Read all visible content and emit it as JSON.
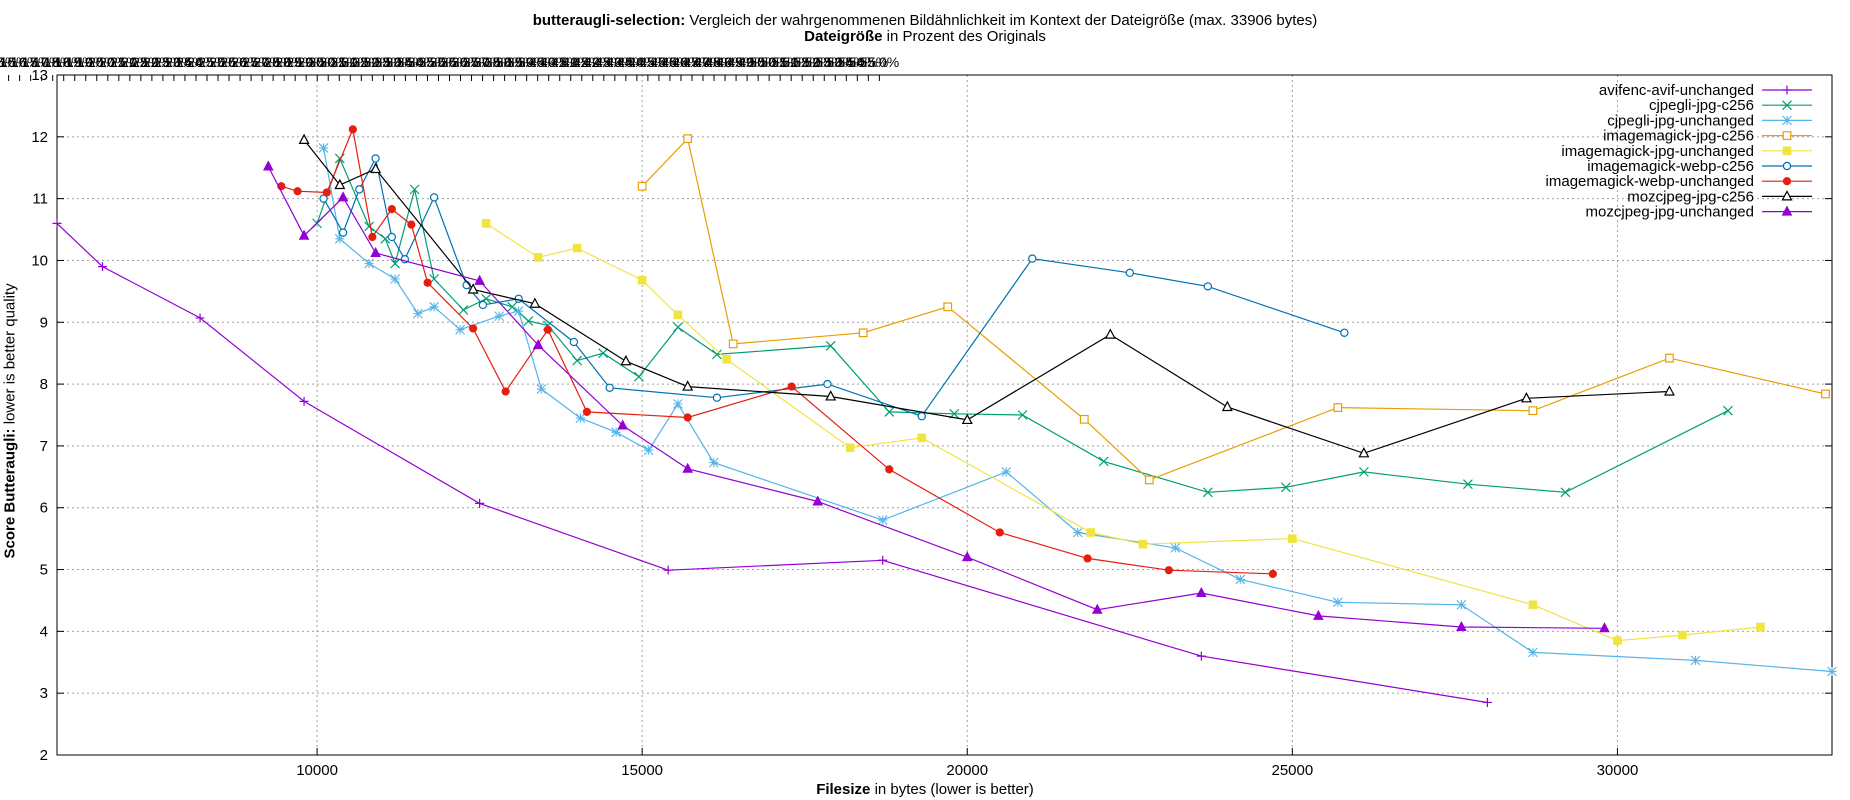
{
  "chart_data": {
    "type": "line",
    "title_bold": "butteraugli-selection:",
    "title_rest": "Vergleich der wahrgenommenen Bildähnlichkeit im Kontext der Dateigröße (max. 33906 bytes)",
    "subtitle_bold": "Dateigröße",
    "subtitle_rest": "in Prozent des Originals",
    "xlabel_bold": "Filesize",
    "xlabel_rest": "in bytes (lower is better)",
    "ylabel_bold": "Score Butteraugli:",
    "ylabel_rest": "lower is better quality",
    "xlim": [
      6000,
      33300
    ],
    "ylim": [
      2,
      13
    ],
    "x_ticks": [
      "10000",
      "15000",
      "20000",
      "25000",
      "30000"
    ],
    "x_tick_values": [
      10000,
      15000,
      20000,
      25000,
      30000
    ],
    "y_ticks": [
      "2",
      "3",
      "4",
      "5",
      "6",
      "7",
      "8",
      "9",
      "10",
      "11",
      "12",
      "13"
    ],
    "y_tick_values": [
      2,
      3,
      4,
      5,
      6,
      7,
      8,
      9,
      10,
      11,
      12,
      13
    ],
    "x2_ticks": [
      "10.0%",
      "10.5%",
      "11.0%",
      "11.5%",
      "12.0%",
      "12.5%",
      "13.0%",
      "13.5%",
      "14.0%",
      "14.5%",
      "15.0%",
      "15.5%",
      "16.0%",
      "16.5%",
      "17.0%",
      "17.5%",
      "18.0%",
      "18.5%",
      "19.0%",
      "19.5%",
      "20.0%",
      "20.5%",
      "21.0%",
      "21.5%",
      "22.0%",
      "22.5%",
      "23.0%",
      "23.5%",
      "24.0%",
      "24.5%",
      "25.0%",
      "25.5%",
      "26.0%",
      "26.5%",
      "27.0%",
      "27.5%",
      "28.0%",
      "28.5%",
      "29.0%",
      "29.5%",
      "30.0%",
      "30.5%",
      "31.0%",
      "31.5%",
      "32.0%",
      "32.5%",
      "33.0%",
      "33.5%",
      "34.0%",
      "34.5%",
      "35.0%",
      "35.5%",
      "36.0%",
      "36.5%",
      "37.0%",
      "37.5%",
      "38.0%",
      "38.5%",
      "39.0%",
      "39.5%",
      "40.0%",
      "40.5%",
      "41.0%",
      "41.5%",
      "42.0%",
      "42.5%",
      "43.0%",
      "43.5%",
      "44.0%",
      "44.5%",
      "45.0%",
      "45.5%",
      "46.0%",
      "46.5%",
      "47.0%",
      "47.5%",
      "48.0%",
      "48.5%",
      "49.0%",
      "49.5%",
      "50.0%",
      "50.5%",
      "51.0%",
      "51.5%",
      "52.0%",
      "52.5%",
      "53.0%",
      "53.5%",
      "54.0%",
      "54.5%",
      "55.0%"
    ],
    "x2_max": 33906,
    "grid": true,
    "legend_position": "top-right",
    "series": [
      {
        "name": "avifenc-avif-unchanged",
        "color": "#9400d3",
        "marker": "plus",
        "points": [
          [
            6000,
            10.6
          ],
          [
            6700,
            9.9
          ],
          [
            8200,
            9.07
          ],
          [
            9800,
            7.72
          ],
          [
            12500,
            6.07
          ],
          [
            15400,
            4.99
          ],
          [
            18700,
            5.15
          ],
          [
            23600,
            3.6
          ],
          [
            28000,
            2.85
          ]
        ]
      },
      {
        "name": "cjpegli-jpg-c256",
        "color": "#009e73",
        "marker": "x",
        "points": [
          [
            10000,
            10.6
          ],
          [
            10350,
            11.65
          ],
          [
            10800,
            10.55
          ],
          [
            11050,
            10.35
          ],
          [
            11200,
            9.95
          ],
          [
            11500,
            11.15
          ],
          [
            11800,
            9.7
          ],
          [
            12250,
            9.2
          ],
          [
            12600,
            9.38
          ],
          [
            13000,
            9.25
          ],
          [
            13250,
            9.02
          ],
          [
            13550,
            8.95
          ],
          [
            14000,
            8.38
          ],
          [
            14400,
            8.5
          ],
          [
            14950,
            8.12
          ],
          [
            15550,
            8.92
          ],
          [
            16150,
            8.48
          ],
          [
            17900,
            8.62
          ],
          [
            18800,
            7.55
          ],
          [
            19800,
            7.52
          ],
          [
            20850,
            7.5
          ],
          [
            22100,
            6.75
          ],
          [
            23700,
            6.25
          ],
          [
            24900,
            6.33
          ],
          [
            26100,
            6.58
          ],
          [
            27700,
            6.38
          ],
          [
            29200,
            6.25
          ],
          [
            31700,
            7.57
          ]
        ]
      },
      {
        "name": "cjpegli-jpg-unchanged",
        "color": "#56b4e9",
        "marker": "star",
        "points": [
          [
            10100,
            11.82
          ],
          [
            10350,
            10.35
          ],
          [
            10800,
            9.95
          ],
          [
            11200,
            9.7
          ],
          [
            11550,
            9.14
          ],
          [
            11800,
            9.25
          ],
          [
            12200,
            8.88
          ],
          [
            12800,
            9.1
          ],
          [
            13100,
            9.18
          ],
          [
            13450,
            7.92
          ],
          [
            14050,
            7.45
          ],
          [
            14600,
            7.22
          ],
          [
            15100,
            6.93
          ],
          [
            15550,
            7.68
          ],
          [
            16100,
            6.73
          ],
          [
            18700,
            5.8
          ],
          [
            20600,
            6.58
          ],
          [
            21700,
            5.6
          ],
          [
            23200,
            5.35
          ],
          [
            24200,
            4.84
          ],
          [
            25700,
            4.47
          ],
          [
            27600,
            4.43
          ],
          [
            28700,
            3.66
          ],
          [
            31200,
            3.53
          ],
          [
            33300,
            3.35
          ]
        ]
      },
      {
        "name": "imagemagick-jpg-c256",
        "color": "#e69f00",
        "marker": "square",
        "points": [
          [
            15000,
            11.2
          ],
          [
            15700,
            11.97
          ],
          [
            16400,
            8.65
          ],
          [
            18400,
            8.83
          ],
          [
            19700,
            9.25
          ],
          [
            21800,
            7.43
          ],
          [
            22800,
            6.45
          ],
          [
            25700,
            7.62
          ],
          [
            28700,
            7.57
          ],
          [
            30800,
            8.42
          ],
          [
            33200,
            7.84
          ]
        ]
      },
      {
        "name": "imagemagick-jpg-unchanged",
        "color": "#f0e442",
        "marker": "filled-square",
        "points": [
          [
            12600,
            10.6
          ],
          [
            13400,
            10.05
          ],
          [
            14000,
            10.2
          ],
          [
            15000,
            9.68
          ],
          [
            15550,
            9.12
          ],
          [
            16300,
            8.4
          ],
          [
            18200,
            6.97
          ],
          [
            19300,
            7.13
          ],
          [
            21900,
            5.6
          ],
          [
            22700,
            5.41
          ],
          [
            25000,
            5.5
          ],
          [
            28700,
            4.43
          ],
          [
            30000,
            3.85
          ],
          [
            31000,
            3.94
          ],
          [
            32200,
            4.07
          ]
        ]
      },
      {
        "name": "imagemagick-webp-c256",
        "color": "#0072b2",
        "marker": "circle",
        "points": [
          [
            10100,
            11.0
          ],
          [
            10400,
            10.45
          ],
          [
            10650,
            11.15
          ],
          [
            10900,
            11.65
          ],
          [
            11150,
            10.38
          ],
          [
            11350,
            10.02
          ],
          [
            11800,
            11.02
          ],
          [
            12300,
            9.6
          ],
          [
            12550,
            9.28
          ],
          [
            13100,
            9.38
          ],
          [
            13950,
            8.68
          ],
          [
            14500,
            7.94
          ],
          [
            16150,
            7.78
          ],
          [
            17850,
            8.0
          ],
          [
            19300,
            7.48
          ],
          [
            21000,
            10.03
          ],
          [
            22500,
            9.8
          ],
          [
            23700,
            9.58
          ],
          [
            25800,
            8.83
          ]
        ]
      },
      {
        "name": "imagemagick-webp-unchanged",
        "color": "#e51e10",
        "marker": "filled-circle",
        "points": [
          [
            9450,
            11.2
          ],
          [
            9700,
            11.12
          ],
          [
            10150,
            11.1
          ],
          [
            10550,
            12.12
          ],
          [
            10850,
            10.38
          ],
          [
            11150,
            10.83
          ],
          [
            11450,
            10.58
          ],
          [
            11700,
            9.64
          ],
          [
            12400,
            8.9
          ],
          [
            12900,
            7.88
          ],
          [
            13550,
            8.88
          ],
          [
            14150,
            7.55
          ],
          [
            15700,
            7.46
          ],
          [
            17300,
            7.96
          ],
          [
            18800,
            6.62
          ],
          [
            20500,
            5.6
          ],
          [
            21850,
            5.18
          ],
          [
            23100,
            4.99
          ],
          [
            24700,
            4.93
          ]
        ]
      },
      {
        "name": "mozcjpeg-jpg-c256",
        "color": "#000000",
        "marker": "triangle",
        "points": [
          [
            9800,
            11.95
          ],
          [
            10350,
            11.22
          ],
          [
            10900,
            11.48
          ],
          [
            12400,
            9.53
          ],
          [
            13350,
            9.3
          ],
          [
            14750,
            8.37
          ],
          [
            15700,
            7.96
          ],
          [
            17900,
            7.8
          ],
          [
            20000,
            7.42
          ],
          [
            22200,
            8.8
          ],
          [
            24000,
            7.63
          ],
          [
            26100,
            6.88
          ],
          [
            28600,
            7.77
          ],
          [
            30800,
            7.88
          ]
        ]
      },
      {
        "name": "mozcjpeg-jpg-unchanged",
        "color": "#9400d3",
        "marker": "filled-triangle",
        "points": [
          [
            9250,
            11.52
          ],
          [
            9800,
            10.4
          ],
          [
            10400,
            11.02
          ],
          [
            10900,
            10.12
          ],
          [
            12500,
            9.67
          ],
          [
            13400,
            8.63
          ],
          [
            14700,
            7.33
          ],
          [
            15700,
            6.63
          ],
          [
            17700,
            6.1
          ],
          [
            20000,
            5.2
          ],
          [
            22000,
            4.35
          ],
          [
            23600,
            4.62
          ],
          [
            25400,
            4.25
          ],
          [
            27600,
            4.07
          ],
          [
            29800,
            4.05
          ]
        ]
      }
    ]
  }
}
